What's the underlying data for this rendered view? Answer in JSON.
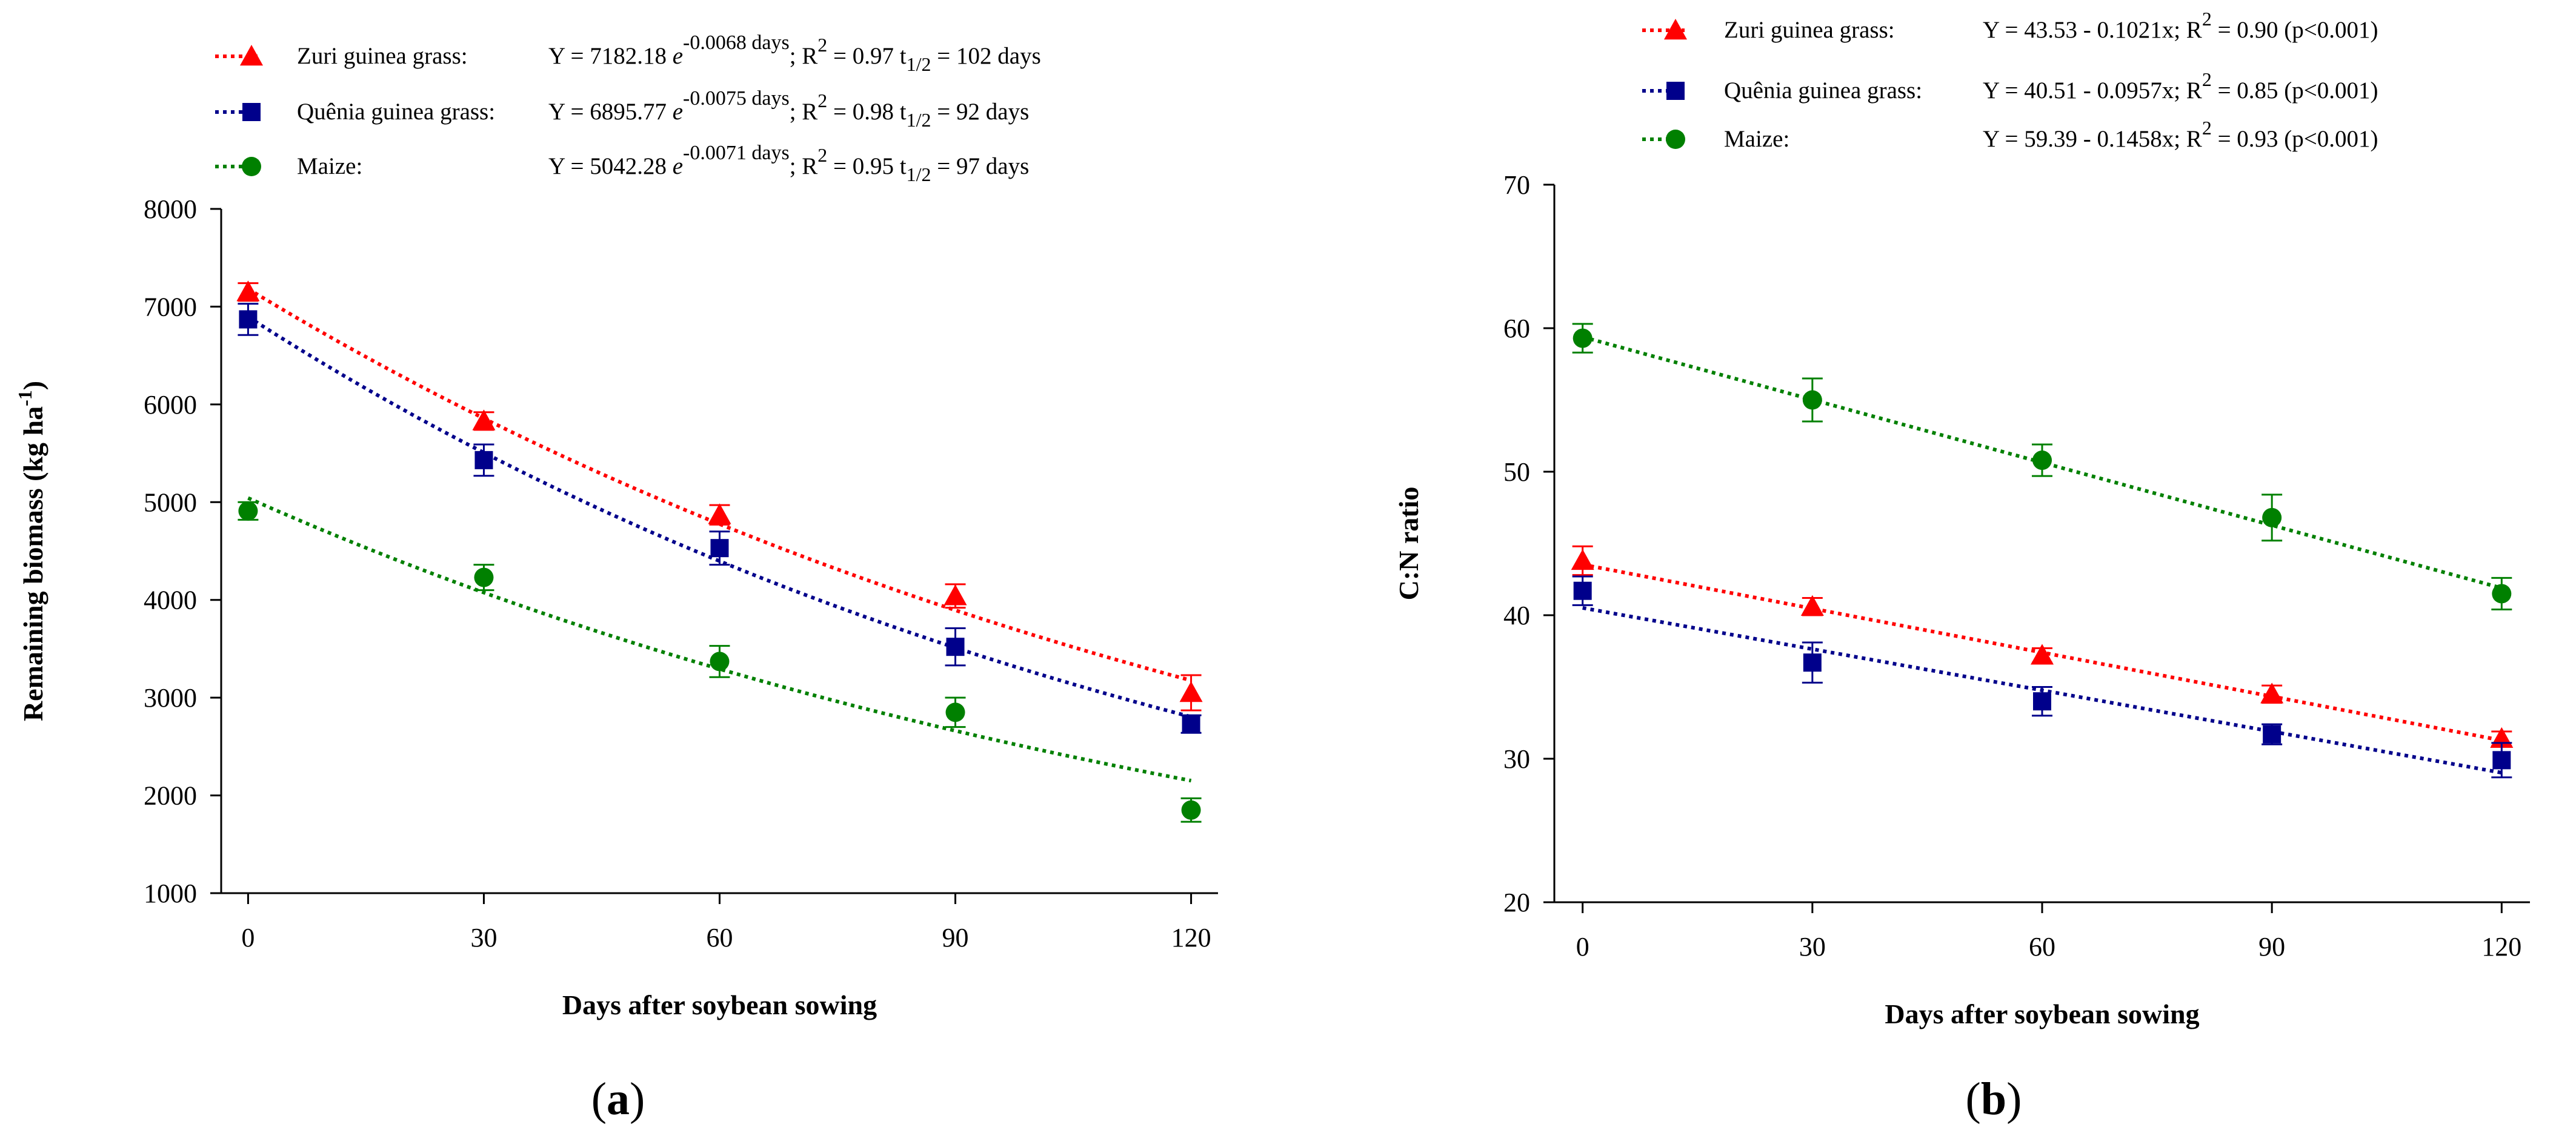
{
  "chart_data": [
    {
      "id": "a",
      "type": "scatter",
      "panel_label_pre": "(",
      "panel_label": "a",
      "panel_label_post": ")",
      "xlabel": "Days after soybean sowing",
      "ylabel": "Remaining biomass  (kg ha",
      "ylabel_sup": "-1",
      "ylabel_end": ")",
      "xlim": [
        0,
        120
      ],
      "ylim": [
        1000,
        8000
      ],
      "xticks": [
        0,
        30,
        60,
        90,
        120
      ],
      "yticks": [
        1000,
        2000,
        3000,
        4000,
        5000,
        6000,
        7000,
        8000
      ],
      "grid": false,
      "legend_position": "top",
      "fit": "exponential",
      "series": [
        {
          "name": "Zuri guinea grass:",
          "color": "#ff0000",
          "marker": "triangle",
          "x": [
            0,
            30,
            60,
            90,
            120
          ],
          "y": [
            7150,
            5830,
            4870,
            4040,
            3050
          ],
          "err": [
            90,
            90,
            100,
            120,
            180
          ],
          "fit_a": 7182.18,
          "fit_k": -0.0068,
          "eq_main": "Y = 7182.18 ",
          "eq_e": "e",
          "eq_exp": "-0.0068 days",
          "eq_r": "; R",
          "eq_r_sup": "2",
          "eq_r_val": " = 0.97 t",
          "eq_t_sub": "1/2",
          "eq_t_val": " = 102 days"
        },
        {
          "name": "Quênia guinea grass:",
          "color": "#00008b",
          "marker": "square",
          "x": [
            0,
            30,
            60,
            90,
            120
          ],
          "y": [
            6870,
            5430,
            4530,
            3520,
            2730
          ],
          "err": [
            160,
            160,
            170,
            190,
            90
          ],
          "fit_a": 6895.77,
          "fit_k": -0.0075,
          "eq_main": "Y = 6895.77 ",
          "eq_e": "e",
          "eq_exp": "-0.0075 days",
          "eq_r": "; R",
          "eq_r_sup": "2",
          "eq_r_val": " = 0.98  t",
          "eq_t_sub": "1/2",
          "eq_t_val": " = 92 days"
        },
        {
          "name": "Maize:",
          "color": "#008000",
          "marker": "circle",
          "x": [
            0,
            30,
            60,
            90,
            120
          ],
          "y": [
            4910,
            4230,
            3370,
            2850,
            1850
          ],
          "err": [
            90,
            130,
            160,
            150,
            120
          ],
          "fit_a": 5042.28,
          "fit_k": -0.0071,
          "eq_main": "Y = 5042.28 ",
          "eq_e": "e",
          "eq_exp": "-0.0071 days",
          "eq_r": "; R",
          "eq_r_sup": "2",
          "eq_r_val": " = 0.95  t",
          "eq_t_sub": "1/2",
          "eq_t_val": " =  97 days"
        }
      ]
    },
    {
      "id": "b",
      "type": "scatter",
      "panel_label_pre": "(",
      "panel_label": "b",
      "panel_label_post": ")",
      "xlabel": "Days after soybean sowing",
      "ylabel": "C:N ratio",
      "xlim": [
        0,
        120
      ],
      "ylim": [
        20,
        70
      ],
      "xticks": [
        0,
        30,
        60,
        90,
        120
      ],
      "yticks": [
        20,
        30,
        40,
        50,
        60,
        70
      ],
      "grid": false,
      "legend_position": "top",
      "fit": "linear",
      "series": [
        {
          "name": "Zuri guinea grass:",
          "color": "#ff0000",
          "marker": "triangle",
          "x": [
            0,
            30,
            60,
            90,
            120
          ],
          "y": [
            43.8,
            40.6,
            37.2,
            34.5,
            31.4
          ],
          "err": [
            1.0,
            0.6,
            0.5,
            0.6,
            0.5
          ],
          "fit_a": 43.53,
          "fit_b": -0.1021,
          "eq_main": "Y = 43.53 - 0.1021x; R",
          "eq_r_sup": "2",
          "eq_r_val": " = 0.90 (p<0.001)"
        },
        {
          "name": "Quênia  guinea grass:",
          "color": "#00008b",
          "marker": "square",
          "x": [
            0,
            30,
            60,
            90,
            120
          ],
          "y": [
            41.7,
            36.7,
            34.0,
            31.7,
            29.9
          ],
          "err": [
            1.0,
            1.4,
            1.0,
            0.7,
            1.2
          ],
          "fit_a": 40.51,
          "fit_b": -0.0957,
          "eq_main": "Y = 40.51 - 0.0957x; R",
          "eq_r_sup": "2",
          "eq_r_val": " = 0.85 (p<0.001)"
        },
        {
          "name": "Maize:",
          "color": "#008000",
          "marker": "circle",
          "x": [
            0,
            30,
            60,
            90,
            120
          ],
          "y": [
            59.3,
            55.0,
            50.8,
            46.8,
            41.5
          ],
          "err": [
            1.0,
            1.5,
            1.1,
            1.6,
            1.1
          ],
          "fit_a": 59.39,
          "fit_b": -0.1458,
          "eq_main": "Y = 59.39 - 0.1458x; R",
          "eq_r_sup": "2",
          "eq_r_val": " = 0.93 (p<0.001)"
        }
      ]
    }
  ]
}
